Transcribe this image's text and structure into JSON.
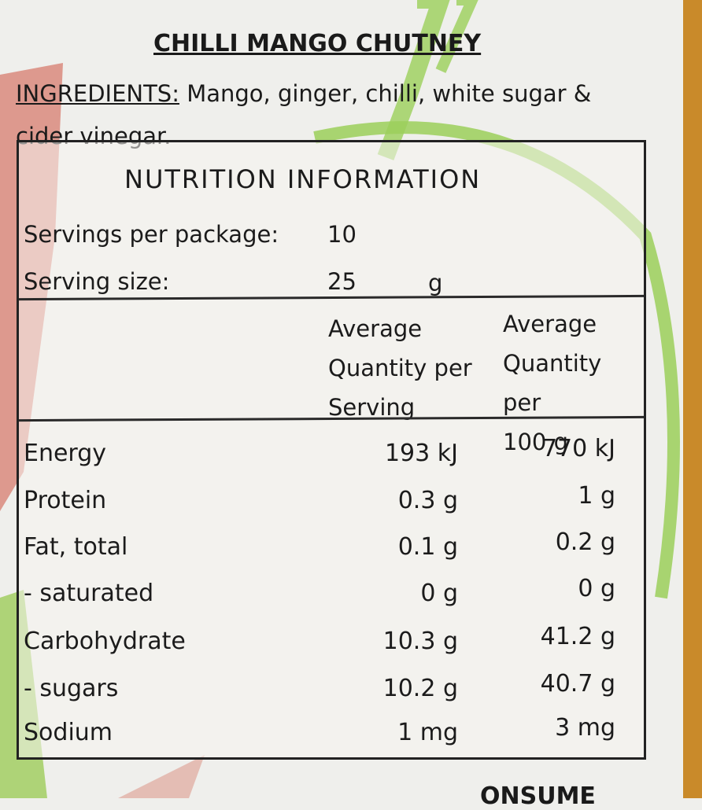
{
  "label": {
    "title": "CHILLI MANGO CHUTNEY",
    "ingredients_label": "INGREDIENTS:",
    "ingredients_text": " Mango, ginger, chilli, white sugar & cider vinegar."
  },
  "nutrition": {
    "heading": "NUTRITION INFORMATION",
    "servings_label": "Servings per package:",
    "servings_value": "10",
    "size_label": "Serving size:",
    "size_value": "25",
    "size_unit": "g",
    "col1_header": [
      "Average",
      "Quantity per",
      "Serving"
    ],
    "col2_header": [
      "Average",
      "Quantity per",
      "100 g"
    ],
    "rows": [
      {
        "name": "Energy",
        "per_serving": "193 kJ",
        "per_100g": "770 kJ"
      },
      {
        "name": "Protein",
        "per_serving": "0.3 g",
        "per_100g": "1 g"
      },
      {
        "name": "Fat, total",
        "per_serving": "0.1 g",
        "per_100g": "0.2 g"
      },
      {
        "name": "- saturated",
        "per_serving": "0 g",
        "per_100g": "0 g"
      },
      {
        "name": "Carbohydrate",
        "per_serving": "10.3 g",
        "per_100g": "41.2 g"
      },
      {
        "name": "- sugars",
        "per_serving": "10.2 g",
        "per_100g": "40.7 g"
      },
      {
        "name": "Sodium",
        "per_serving": "1 mg",
        "per_100g": "3 mg"
      }
    ]
  },
  "cut_off_text": "ONSUME",
  "colors": {
    "background": "#efefec",
    "green": "#9bcf5a",
    "salmon": "#d98a7e",
    "amber": "#c98a2a"
  }
}
